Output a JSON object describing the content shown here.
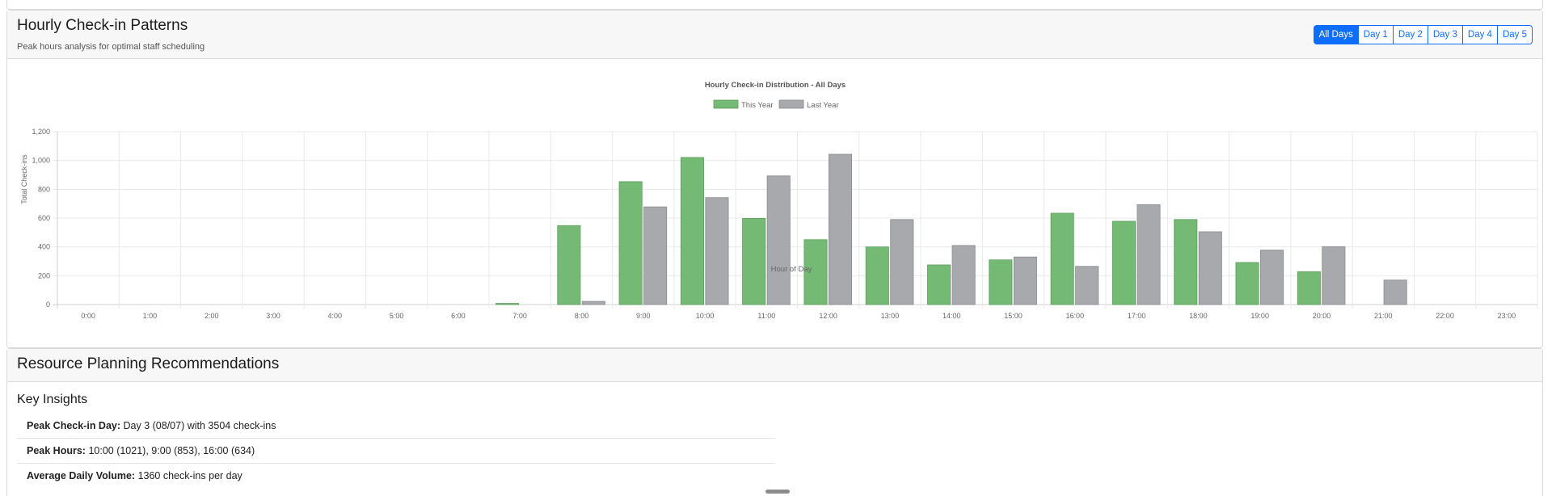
{
  "hourly": {
    "title": "Hourly Check-in Patterns",
    "subtitle": "Peak hours analysis for optimal staff scheduling",
    "filters": [
      "All Days",
      "Day 1",
      "Day 2",
      "Day 3",
      "Day 4",
      "Day 5"
    ],
    "active_filter": "All Days"
  },
  "chart_data": {
    "type": "bar",
    "title": "Hourly Check-in Distribution - All Days",
    "xlabel": "Hour of Day",
    "ylabel": "Total Check-ins",
    "ylim": [
      0,
      1200
    ],
    "yticks": [
      "0",
      "200",
      "400",
      "600",
      "800",
      "1,000",
      "1,200"
    ],
    "grid": true,
    "legend_position": "top-center",
    "categories": [
      "0:00",
      "1:00",
      "2:00",
      "3:00",
      "4:00",
      "5:00",
      "6:00",
      "7:00",
      "8:00",
      "9:00",
      "10:00",
      "11:00",
      "12:00",
      "13:00",
      "14:00",
      "15:00",
      "16:00",
      "17:00",
      "18:00",
      "19:00",
      "20:00",
      "21:00",
      "22:00",
      "23:00"
    ],
    "series": [
      {
        "name": "This Year",
        "color": "#74b974",
        "values": [
          0,
          0,
          0,
          0,
          0,
          0,
          0,
          8,
          548,
          853,
          1021,
          598,
          450,
          400,
          275,
          310,
          634,
          578,
          590,
          292,
          228,
          0,
          0,
          0
        ]
      },
      {
        "name": "Last Year",
        "color": "#a7a9ad",
        "values": [
          0,
          0,
          0,
          0,
          0,
          0,
          0,
          0,
          22,
          678,
          742,
          893,
          1043,
          590,
          410,
          330,
          265,
          693,
          505,
          378,
          402,
          170,
          0,
          0
        ]
      }
    ]
  },
  "resource": {
    "title": "Resource Planning Recommendations",
    "insights_title": "Key Insights",
    "insights": [
      {
        "label": "Peak Check-in Day:",
        "value": "Day 3 (08/07) with 3504 check-ins"
      },
      {
        "label": "Peak Hours:",
        "value": "10:00 (1021), 9:00 (853), 16:00 (634)"
      },
      {
        "label": "Average Daily Volume:",
        "value": "1360 check-ins per day"
      }
    ]
  }
}
